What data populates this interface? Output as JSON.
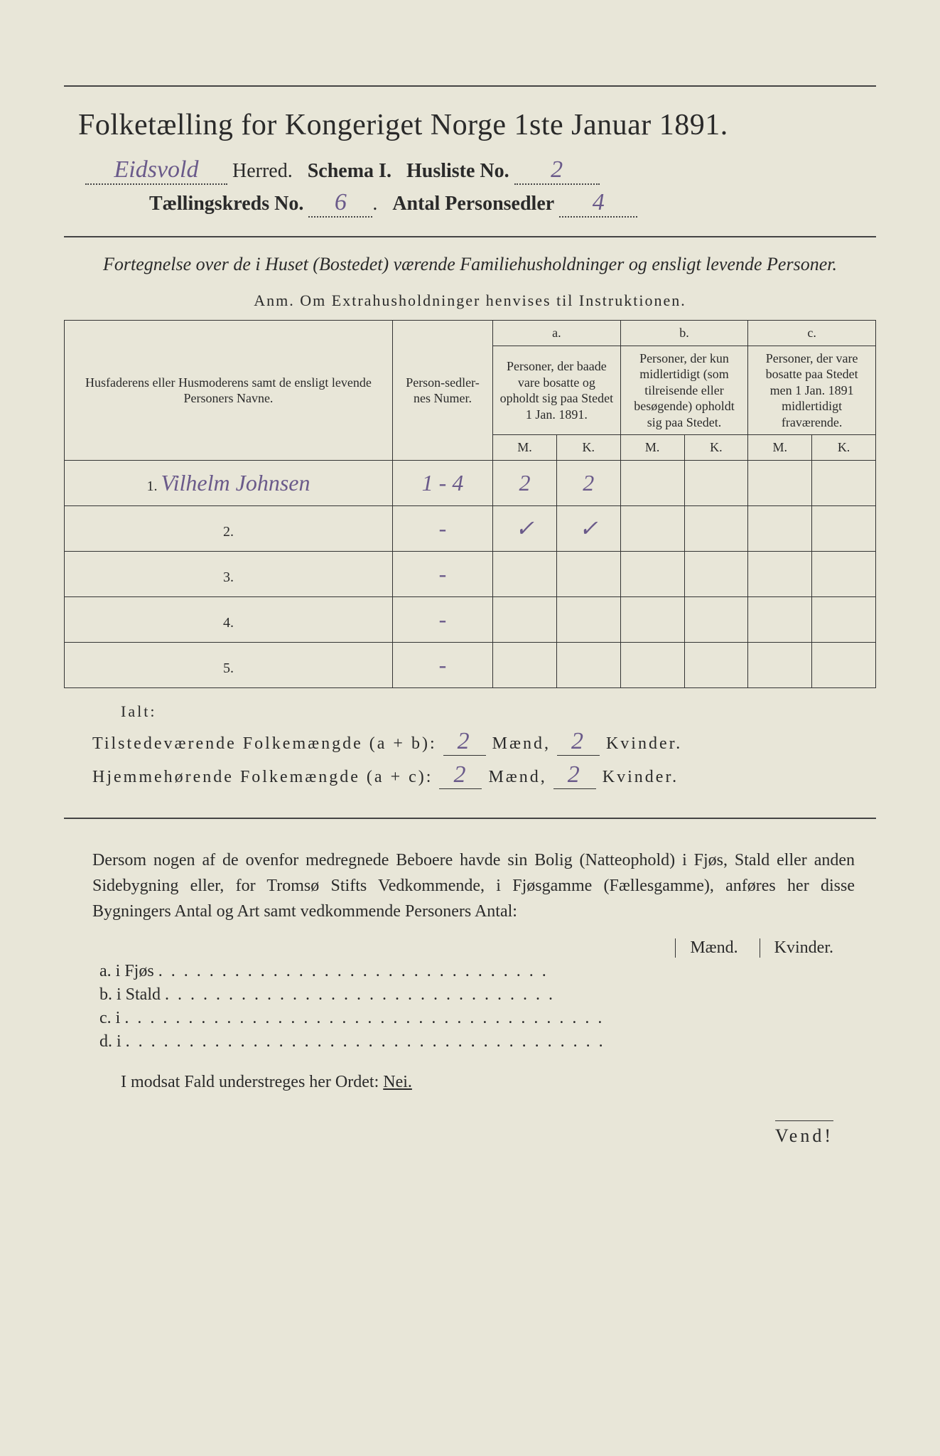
{
  "header": {
    "title": "Folketælling for Kongeriget Norge 1ste Januar 1891.",
    "herred_hand": "Eidsvold",
    "herred_label": "Herred.",
    "schema_label": "Schema I.",
    "husliste_label": "Husliste No.",
    "husliste_hand": "2",
    "kreds_label": "Tællingskreds No.",
    "kreds_hand": "6",
    "antal_label": "Antal Personsedler",
    "antal_hand": "4"
  },
  "subtitle": "Fortegnelse over de i Huset (Bostedet) værende Familiehusholdninger og ensligt levende Personer.",
  "anm": "Anm.  Om Extrahusholdninger henvises til Instruktionen.",
  "columns": {
    "name": "Husfaderens eller Husmoderens samt de ensligt levende Personers Navne.",
    "num": "Person-sedler-nes Numer.",
    "a_top": "a.",
    "a": "Personer, der baade vare bosatte og opholdt sig paa Stedet 1 Jan. 1891.",
    "b_top": "b.",
    "b": "Personer, der kun midlertidigt (som tilreisende eller besøgende) opholdt sig paa Stedet.",
    "c_top": "c.",
    "c": "Personer, der vare bosatte paa Stedet men 1 Jan. 1891 midlertidigt fraværende.",
    "m": "M.",
    "k": "K."
  },
  "rows": [
    {
      "n": "1.",
      "name": "Vilhelm Johnsen",
      "num": "1 - 4",
      "am": "2",
      "ak": "2",
      "bm": "",
      "bk": "",
      "cm": "",
      "ck": ""
    },
    {
      "n": "2.",
      "name": "",
      "num": "-",
      "am": "✓",
      "ak": "✓",
      "bm": "",
      "bk": "",
      "cm": "",
      "ck": ""
    },
    {
      "n": "3.",
      "name": "",
      "num": "-",
      "am": "",
      "ak": "",
      "bm": "",
      "bk": "",
      "cm": "",
      "ck": ""
    },
    {
      "n": "4.",
      "name": "",
      "num": "-",
      "am": "",
      "ak": "",
      "bm": "",
      "bk": "",
      "cm": "",
      "ck": ""
    },
    {
      "n": "5.",
      "name": "",
      "num": "-",
      "am": "",
      "ak": "",
      "bm": "",
      "bk": "",
      "cm": "",
      "ck": ""
    }
  ],
  "totals": {
    "ialt": "Ialt:",
    "line1_label": "Tilstedeværende Folkemængde (a + b):",
    "line1_m": "2",
    "line1_k": "2",
    "line2_label": "Hjemmehørende Folkemængde (a + c):",
    "line2_m": "2",
    "line2_k": "2",
    "maend": "Mænd,",
    "kvinder": "Kvinder."
  },
  "para": "Dersom nogen af de ovenfor medregnede Beboere havde sin Bolig (Natteophold) i Fjøs, Stald eller anden Sidebygning eller, for Tromsø Stifts Vedkommende, i Fjøsgamme (Fællesgamme), anføres her disse Bygningers Antal og Art samt vedkommende Personers Antal:",
  "mk": {
    "m": "Mænd.",
    "k": "Kvinder."
  },
  "list": {
    "a": "a.  i      Fjøs",
    "b": "b.  i      Stald",
    "c": "c.  i",
    "d": "d.  i"
  },
  "nei_line": "I modsat Fald understreges her Ordet:",
  "nei": "Nei.",
  "vend": "Vend!"
}
